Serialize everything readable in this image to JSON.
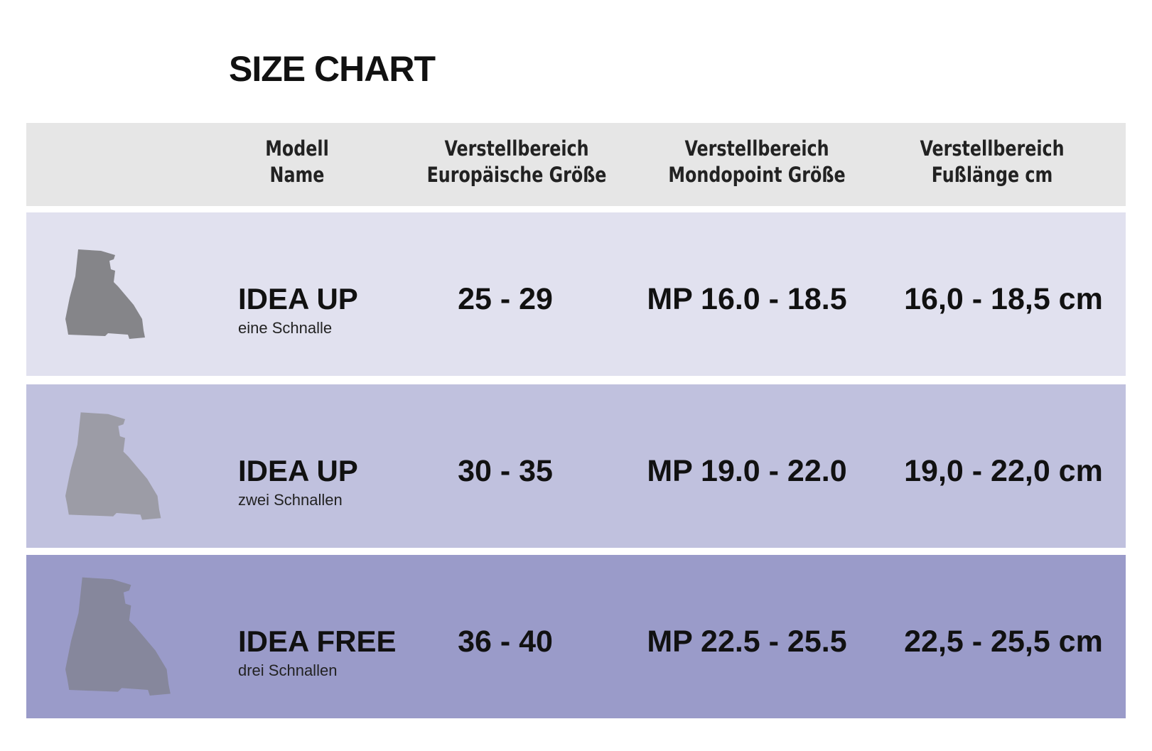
{
  "title": "SIZE CHART",
  "header": [
    [
      "Modell",
      "Name"
    ],
    [
      "Verstellbereich",
      "Europäische Größe"
    ],
    [
      "Verstellbereich",
      "Mondopoint Größe"
    ],
    [
      "Verstellbereich",
      "Fußlänge cm"
    ]
  ],
  "rows": [
    {
      "model": "IDEA UP",
      "buckles": "eine Schnalle",
      "eu": "25 - 29",
      "mondopoint": "MP 16.0 - 18.5",
      "foot_length": "16,0 - 18,5 cm"
    },
    {
      "model": "IDEA UP",
      "buckles": "zwei Schnallen",
      "eu": "30 - 35",
      "mondopoint": "MP 19.0 - 22.0",
      "foot_length": "19,0 - 22,0 cm"
    },
    {
      "model": "IDEA FREE",
      "buckles": "drei Schnallen",
      "eu": "36 - 40",
      "mondopoint": "MP 22.5 - 25.5",
      "foot_length": "22,5 - 25,5 cm"
    }
  ]
}
